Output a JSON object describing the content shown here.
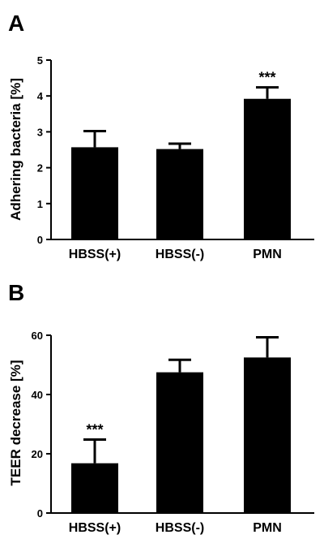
{
  "chart_data": [
    {
      "panel": "A",
      "type": "bar",
      "categories": [
        "HBSS(+)",
        "HBSS(-)",
        "PMN"
      ],
      "values": [
        2.57,
        2.52,
        3.92
      ],
      "errors": [
        0.45,
        0.15,
        0.32
      ],
      "significance": [
        "",
        "",
        "***"
      ],
      "ylabel": "Adhering bacteria [%]",
      "ylim": [
        0,
        5
      ],
      "yticks": [
        "0",
        "1",
        "2",
        "3",
        "4",
        "5"
      ],
      "grid": false,
      "bar_color": "#000000"
    },
    {
      "panel": "B",
      "type": "bar",
      "categories": [
        "HBSS(+)",
        "HBSS(-)",
        "PMN"
      ],
      "values": [
        16.8,
        47.5,
        52.5
      ],
      "errors": [
        8.0,
        4.2,
        6.8
      ],
      "significance": [
        "***",
        "",
        ""
      ],
      "ylabel": "TEER decrease [%]",
      "ylim": [
        0,
        60
      ],
      "yticks": [
        "0",
        "20",
        "40",
        "60"
      ],
      "grid": false,
      "bar_color": "#000000"
    }
  ]
}
